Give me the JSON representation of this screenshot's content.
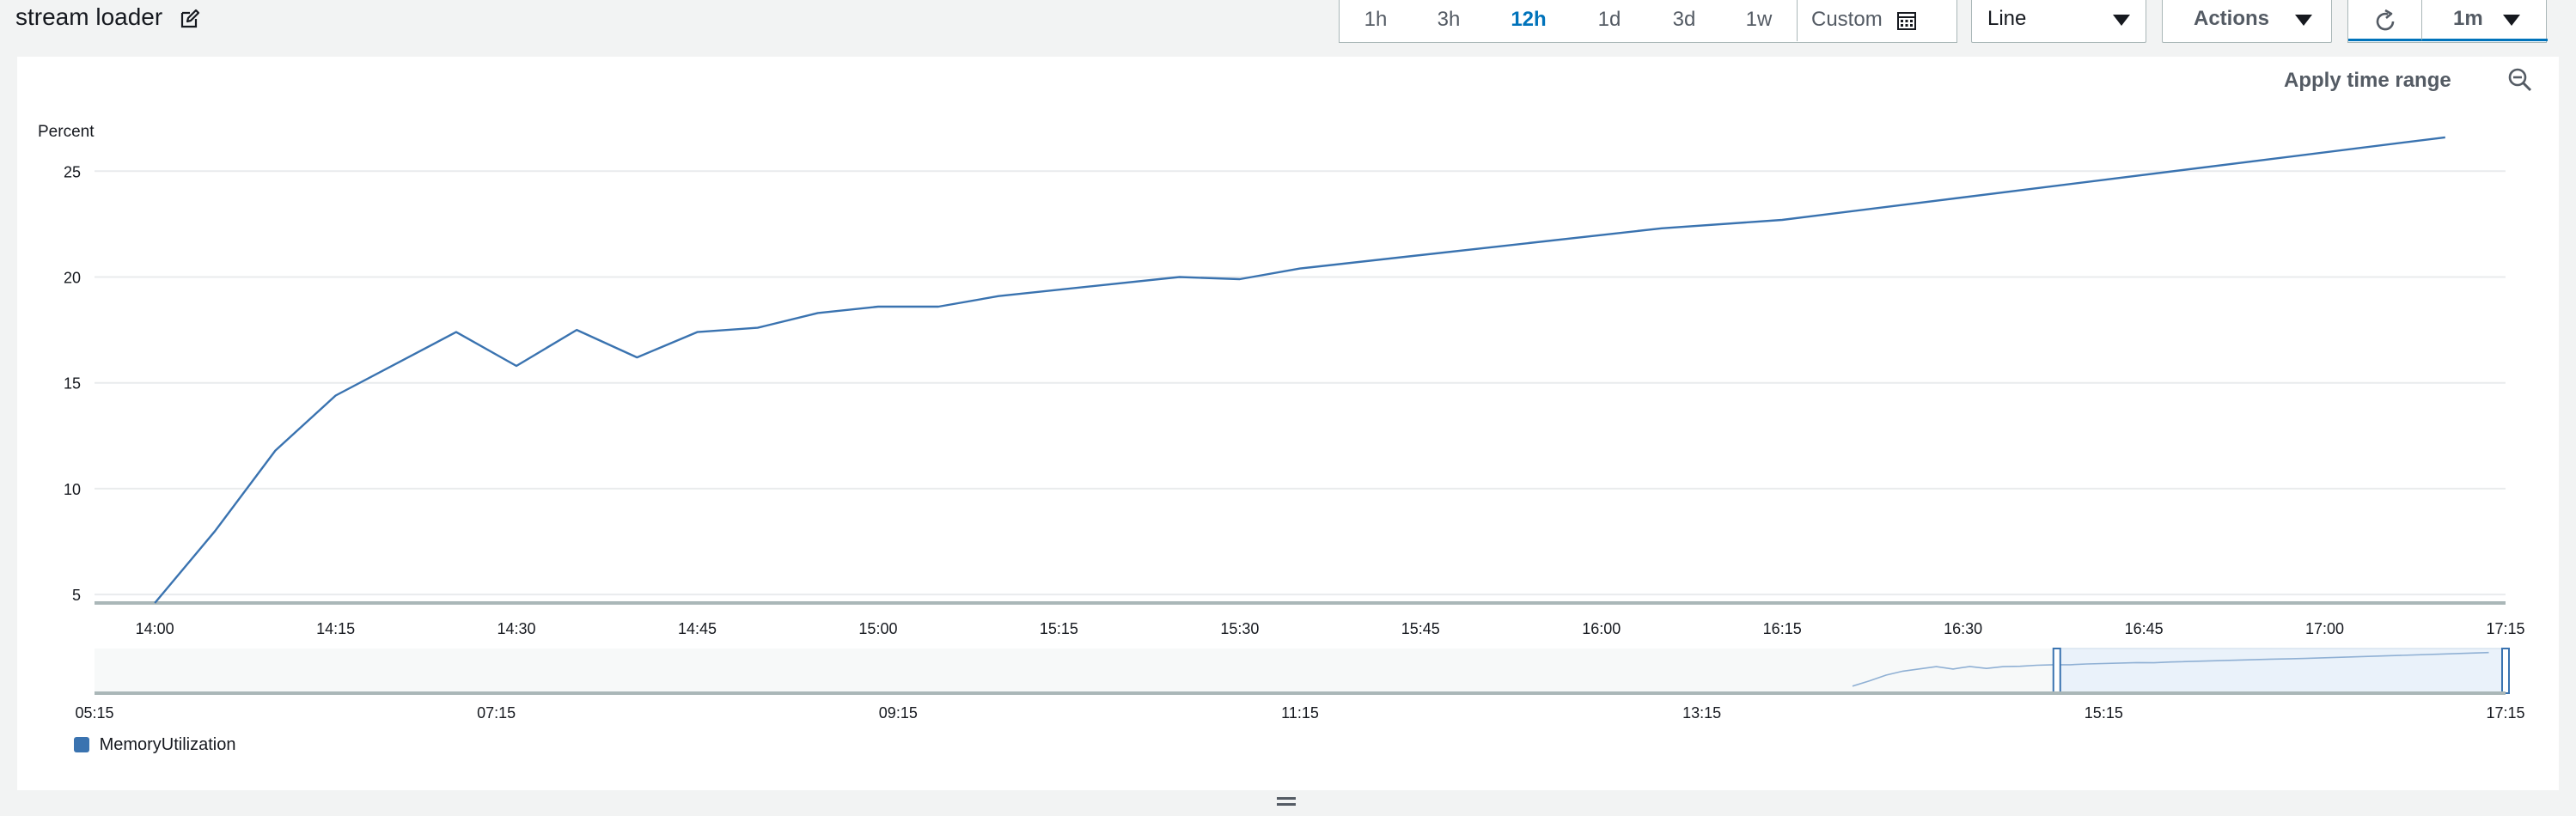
{
  "header": {
    "title": "stream loader",
    "time_ranges": [
      "1h",
      "3h",
      "12h",
      "1d",
      "3d",
      "1w"
    ],
    "active_range": "12h",
    "custom_label": "Custom",
    "view_type": "Line",
    "actions_label": "Actions",
    "refresh_interval": "1m"
  },
  "panel": {
    "apply_time_range_label": "Apply time range"
  },
  "legend": {
    "label": "MemoryUtilization",
    "color": "#3a73b0"
  },
  "colors": {
    "accent": "#0073bb",
    "series": "#3a73b0"
  },
  "icons": [
    "edit-icon",
    "calendar-icon",
    "caret-down-icon",
    "refresh-icon",
    "zoom-out-icon"
  ],
  "chart_data": {
    "type": "line",
    "ylabel": "Percent",
    "y_ticks": [
      5,
      10,
      15,
      20,
      25
    ],
    "ylim": [
      4.6,
      27
    ],
    "x_tick_labels": [
      "14:00",
      "14:15",
      "14:30",
      "14:45",
      "15:00",
      "15:15",
      "15:30",
      "15:45",
      "16:00",
      "16:15",
      "16:30",
      "16:45",
      "17:00",
      "17:15"
    ],
    "x_range_minutes": [
      835,
      1035
    ],
    "series": [
      {
        "name": "MemoryUtilization",
        "x": [
          "14:00",
          "14:05",
          "14:10",
          "14:15",
          "14:25",
          "14:30",
          "14:35",
          "14:40",
          "14:45",
          "14:50",
          "14:55",
          "15:00",
          "15:05",
          "15:10",
          "15:25",
          "15:30",
          "15:35",
          "16:05",
          "16:15",
          "17:10"
        ],
        "values": [
          4.6,
          8.0,
          11.8,
          14.4,
          17.4,
          15.8,
          17.5,
          16.2,
          17.4,
          17.6,
          18.3,
          18.6,
          18.6,
          19.1,
          20.0,
          19.9,
          20.4,
          22.3,
          22.7,
          26.6
        ]
      }
    ],
    "overview": {
      "x_tick_labels": [
        "05:15",
        "07:15",
        "09:15",
        "11:15",
        "13:15",
        "15:15",
        "17:15"
      ],
      "x_range_minutes": [
        315,
        1035
      ],
      "selection_minutes": [
        901,
        1035
      ]
    },
    "grid": true,
    "legend_position": "bottom-left"
  }
}
